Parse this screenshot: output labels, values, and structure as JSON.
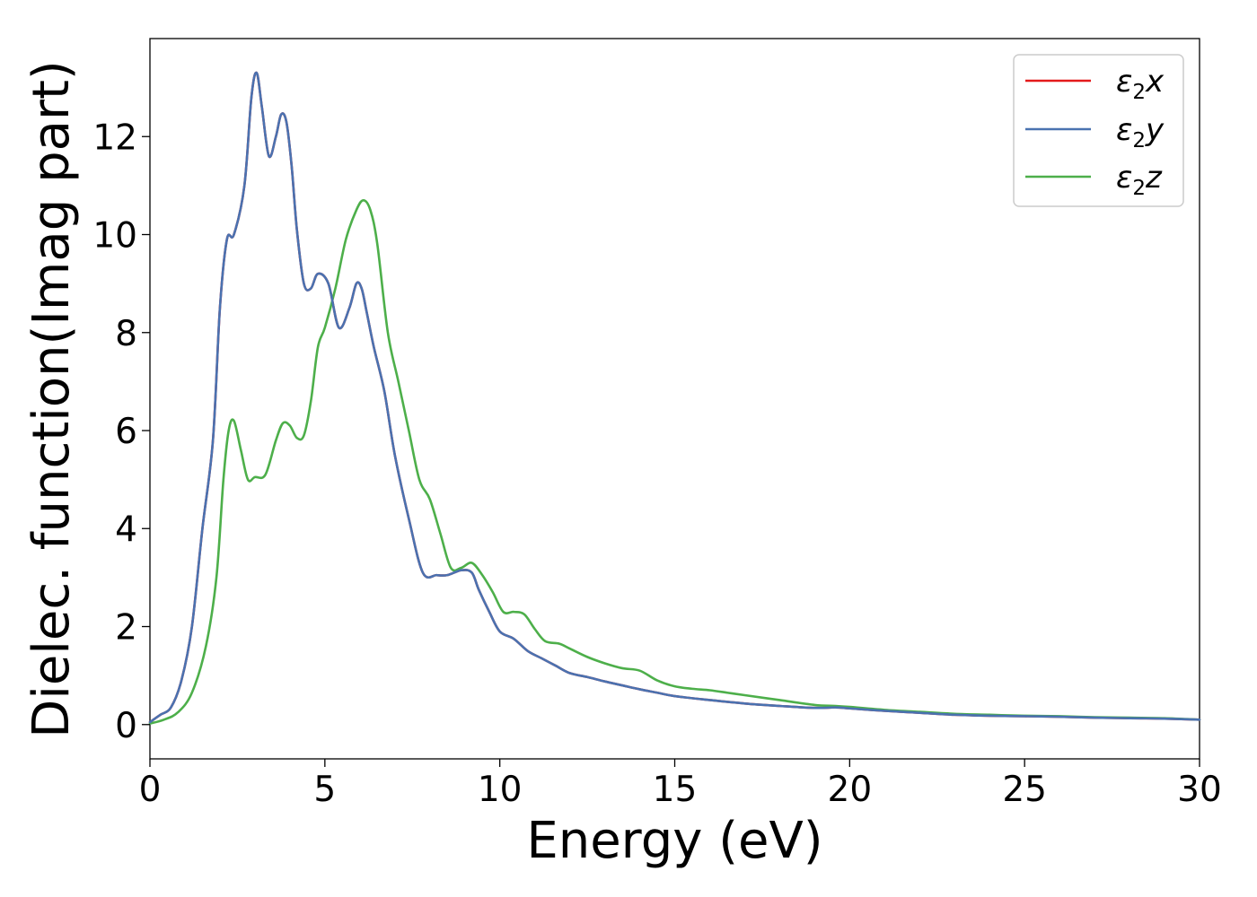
{
  "chart_data": {
    "type": "line",
    "title": "",
    "xlabel": "Energy (eV)",
    "ylabel": "Dielec. function(Imag part)",
    "xlim": [
      0,
      30
    ],
    "ylim": [
      -0.7,
      14.0
    ],
    "xticks": [
      0,
      5,
      10,
      15,
      20,
      25,
      30
    ],
    "xtick_labels": [
      "0",
      "5",
      "10",
      "15",
      "20",
      "25",
      "30"
    ],
    "yticks": [
      0,
      2,
      4,
      6,
      8,
      10,
      12
    ],
    "ytick_labels": [
      "0",
      "2",
      "4",
      "6",
      "8",
      "10",
      "12"
    ],
    "grid": false,
    "legend_position": "top-right",
    "series": [
      {
        "name": "ε2x",
        "name_base": "ε",
        "name_sub": "2",
        "name_suffix": "x",
        "color": "#e41a1c",
        "x": [
          0,
          0.3,
          0.6,
          0.9,
          1.2,
          1.5,
          1.8,
          2.0,
          2.2,
          2.4,
          2.7,
          2.9,
          3.05,
          3.2,
          3.4,
          3.6,
          3.75,
          3.9,
          4.05,
          4.2,
          4.4,
          4.6,
          4.8,
          5.1,
          5.4,
          5.7,
          5.9,
          6.05,
          6.2,
          6.4,
          6.7,
          7.0,
          7.4,
          7.8,
          8.2,
          8.5,
          8.9,
          9.2,
          9.4,
          9.7,
          10.0,
          10.4,
          10.8,
          11.2,
          11.6,
          12.0,
          12.5,
          13.0,
          13.5,
          14.0,
          14.5,
          15.0,
          16.0,
          17.0,
          18.0,
          19.0,
          19.6,
          20.0,
          21.0,
          22.0,
          23.0,
          24.0,
          25.0,
          26.0,
          27.0,
          28.0,
          29.0,
          30.0
        ],
        "values": [
          0.05,
          0.2,
          0.35,
          0.9,
          2.0,
          4.0,
          5.8,
          8.5,
          9.9,
          10.0,
          11.0,
          12.8,
          13.3,
          12.6,
          11.6,
          12.0,
          12.45,
          12.3,
          11.4,
          10.1,
          9.0,
          8.9,
          9.2,
          9.0,
          8.1,
          8.5,
          9.0,
          8.9,
          8.4,
          7.7,
          6.8,
          5.5,
          4.2,
          3.1,
          3.05,
          3.05,
          3.15,
          3.1,
          2.75,
          2.3,
          1.9,
          1.75,
          1.5,
          1.35,
          1.2,
          1.05,
          0.97,
          0.88,
          0.8,
          0.72,
          0.65,
          0.58,
          0.5,
          0.43,
          0.38,
          0.34,
          0.35,
          0.33,
          0.28,
          0.24,
          0.2,
          0.18,
          0.17,
          0.16,
          0.14,
          0.13,
          0.12,
          0.1
        ]
      },
      {
        "name": "ε2y",
        "name_base": "ε",
        "name_sub": "2",
        "name_suffix": "y",
        "color": "#4a72b0",
        "x": [
          0,
          0.3,
          0.6,
          0.9,
          1.2,
          1.5,
          1.8,
          2.0,
          2.2,
          2.4,
          2.7,
          2.9,
          3.05,
          3.2,
          3.4,
          3.6,
          3.75,
          3.9,
          4.05,
          4.2,
          4.4,
          4.6,
          4.8,
          5.1,
          5.4,
          5.7,
          5.9,
          6.05,
          6.2,
          6.4,
          6.7,
          7.0,
          7.4,
          7.8,
          8.2,
          8.5,
          8.9,
          9.2,
          9.4,
          9.7,
          10.0,
          10.4,
          10.8,
          11.2,
          11.6,
          12.0,
          12.5,
          13.0,
          13.5,
          14.0,
          14.5,
          15.0,
          16.0,
          17.0,
          18.0,
          19.0,
          19.6,
          20.0,
          21.0,
          22.0,
          23.0,
          24.0,
          25.0,
          26.0,
          27.0,
          28.0,
          29.0,
          30.0
        ],
        "values": [
          0.05,
          0.2,
          0.35,
          0.9,
          2.0,
          4.0,
          5.8,
          8.5,
          9.9,
          10.0,
          11.0,
          12.8,
          13.3,
          12.6,
          11.6,
          12.0,
          12.45,
          12.3,
          11.4,
          10.1,
          9.0,
          8.9,
          9.2,
          9.0,
          8.1,
          8.5,
          9.0,
          8.9,
          8.4,
          7.7,
          6.8,
          5.5,
          4.2,
          3.1,
          3.05,
          3.05,
          3.15,
          3.1,
          2.75,
          2.3,
          1.9,
          1.75,
          1.5,
          1.35,
          1.2,
          1.05,
          0.97,
          0.88,
          0.8,
          0.72,
          0.65,
          0.58,
          0.5,
          0.43,
          0.38,
          0.34,
          0.35,
          0.33,
          0.28,
          0.24,
          0.2,
          0.18,
          0.17,
          0.16,
          0.14,
          0.13,
          0.12,
          0.1
        ]
      },
      {
        "name": "ε2z",
        "name_base": "ε",
        "name_sub": "2",
        "name_suffix": "z",
        "color": "#4daf4a",
        "x": [
          0,
          0.4,
          0.8,
          1.2,
          1.6,
          1.9,
          2.1,
          2.25,
          2.4,
          2.6,
          2.8,
          3.0,
          3.3,
          3.6,
          3.8,
          4.0,
          4.2,
          4.4,
          4.6,
          4.8,
          5.0,
          5.3,
          5.6,
          5.9,
          6.1,
          6.3,
          6.5,
          6.8,
          7.1,
          7.4,
          7.7,
          8.0,
          8.3,
          8.6,
          8.9,
          9.2,
          9.5,
          9.8,
          10.1,
          10.4,
          10.7,
          11.0,
          11.3,
          11.7,
          12.0,
          12.5,
          13.0,
          13.5,
          14.0,
          14.5,
          15.0,
          15.5,
          16.0,
          16.5,
          17.0,
          18.0,
          19.0,
          19.6,
          20.0,
          21.0,
          22.0,
          23.0,
          24.0,
          25.0,
          26.0,
          27.0,
          28.0,
          29.0,
          30.0
        ],
        "values": [
          0.02,
          0.1,
          0.25,
          0.65,
          1.6,
          3.0,
          5.0,
          6.0,
          6.2,
          5.6,
          5.0,
          5.05,
          5.1,
          5.8,
          6.15,
          6.1,
          5.85,
          5.9,
          6.6,
          7.7,
          8.1,
          8.9,
          9.9,
          10.5,
          10.7,
          10.5,
          9.8,
          8.0,
          7.0,
          6.0,
          5.0,
          4.6,
          3.9,
          3.2,
          3.2,
          3.3,
          3.05,
          2.7,
          2.3,
          2.3,
          2.25,
          1.95,
          1.7,
          1.65,
          1.55,
          1.38,
          1.25,
          1.15,
          1.1,
          0.9,
          0.78,
          0.73,
          0.7,
          0.65,
          0.6,
          0.5,
          0.4,
          0.38,
          0.36,
          0.3,
          0.26,
          0.22,
          0.2,
          0.18,
          0.17,
          0.15,
          0.14,
          0.13,
          0.1
        ]
      }
    ]
  }
}
